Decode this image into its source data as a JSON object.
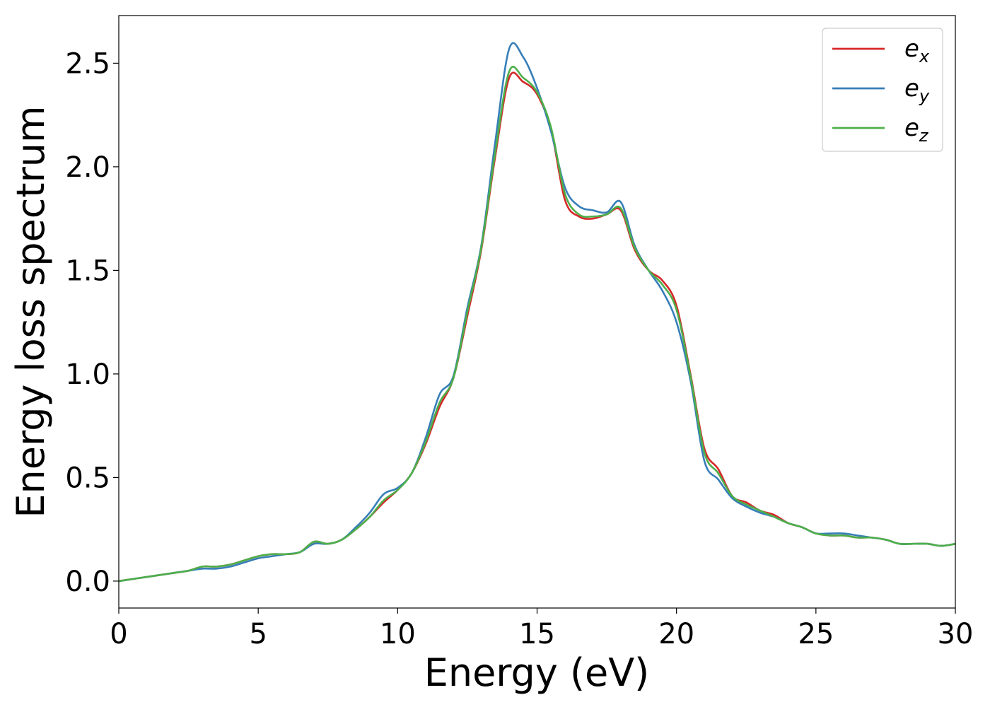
{
  "chart_data": {
    "type": "line",
    "xlabel": "Energy (eV)",
    "ylabel": "Energy loss spectrum",
    "xlim": [
      0,
      30
    ],
    "ylim": [
      -0.13,
      2.73
    ],
    "xticks": [
      0,
      5,
      10,
      15,
      20,
      25,
      30
    ],
    "yticks": [
      0.0,
      0.5,
      1.0,
      1.5,
      2.0,
      2.5
    ],
    "xtick_labels": [
      "0",
      "5",
      "10",
      "15",
      "20",
      "25",
      "30"
    ],
    "ytick_labels": [
      "0.0",
      "0.5",
      "1.0",
      "1.5",
      "2.0",
      "2.5"
    ],
    "grid": false,
    "legend_position": "top-right",
    "x": [
      0,
      0.5,
      1,
      1.5,
      2,
      2.5,
      3,
      3.5,
      4,
      4.5,
      5,
      5.5,
      6,
      6.5,
      7,
      7.5,
      8,
      8.5,
      9,
      9.5,
      10,
      10.5,
      11,
      11.5,
      12,
      12.5,
      13,
      13.5,
      14,
      14.5,
      15,
      15.5,
      16,
      16.5,
      17,
      17.5,
      18,
      18.5,
      19,
      19.5,
      20,
      20.5,
      21,
      21.5,
      22,
      22.5,
      23,
      23.5,
      24,
      24.5,
      25,
      25.5,
      26,
      26.5,
      27,
      27.5,
      28,
      28.5,
      29,
      29.5,
      30
    ],
    "series": [
      {
        "name": "e",
        "subscript": "x",
        "color": "#d62728",
        "values": [
          0.0,
          0.01,
          0.02,
          0.03,
          0.04,
          0.05,
          0.07,
          0.07,
          0.08,
          0.1,
          0.12,
          0.13,
          0.13,
          0.14,
          0.19,
          0.18,
          0.2,
          0.25,
          0.31,
          0.38,
          0.44,
          0.52,
          0.66,
          0.84,
          0.98,
          1.28,
          1.6,
          2.05,
          2.43,
          2.41,
          2.35,
          2.18,
          1.84,
          1.76,
          1.75,
          1.77,
          1.79,
          1.6,
          1.5,
          1.45,
          1.33,
          1.0,
          0.64,
          0.54,
          0.41,
          0.38,
          0.34,
          0.32,
          0.28,
          0.26,
          0.23,
          0.22,
          0.22,
          0.21,
          0.21,
          0.2,
          0.18,
          0.18,
          0.18,
          0.17,
          0.18
        ]
      },
      {
        "name": "e",
        "subscript": "y",
        "color": "#377eb8",
        "values": [
          0.0,
          0.01,
          0.02,
          0.03,
          0.04,
          0.05,
          0.06,
          0.06,
          0.07,
          0.09,
          0.11,
          0.12,
          0.13,
          0.14,
          0.18,
          0.18,
          0.2,
          0.26,
          0.33,
          0.42,
          0.45,
          0.52,
          0.69,
          0.9,
          0.99,
          1.32,
          1.62,
          2.12,
          2.57,
          2.53,
          2.38,
          2.17,
          1.9,
          1.81,
          1.79,
          1.78,
          1.83,
          1.62,
          1.5,
          1.4,
          1.25,
          0.97,
          0.58,
          0.49,
          0.4,
          0.36,
          0.33,
          0.31,
          0.28,
          0.26,
          0.23,
          0.23,
          0.23,
          0.22,
          0.21,
          0.2,
          0.18,
          0.18,
          0.18,
          0.17,
          0.18
        ]
      },
      {
        "name": "e",
        "subscript": "z",
        "color": "#4daf4a",
        "values": [
          0.0,
          0.01,
          0.02,
          0.03,
          0.04,
          0.05,
          0.07,
          0.07,
          0.08,
          0.1,
          0.12,
          0.13,
          0.13,
          0.14,
          0.19,
          0.18,
          0.2,
          0.25,
          0.31,
          0.39,
          0.44,
          0.52,
          0.67,
          0.86,
          0.98,
          1.3,
          1.61,
          2.07,
          2.46,
          2.43,
          2.36,
          2.19,
          1.87,
          1.77,
          1.76,
          1.77,
          1.8,
          1.61,
          1.5,
          1.43,
          1.31,
          0.99,
          0.62,
          0.52,
          0.41,
          0.37,
          0.34,
          0.31,
          0.28,
          0.26,
          0.23,
          0.22,
          0.22,
          0.21,
          0.21,
          0.2,
          0.18,
          0.18,
          0.18,
          0.17,
          0.18
        ]
      }
    ]
  }
}
